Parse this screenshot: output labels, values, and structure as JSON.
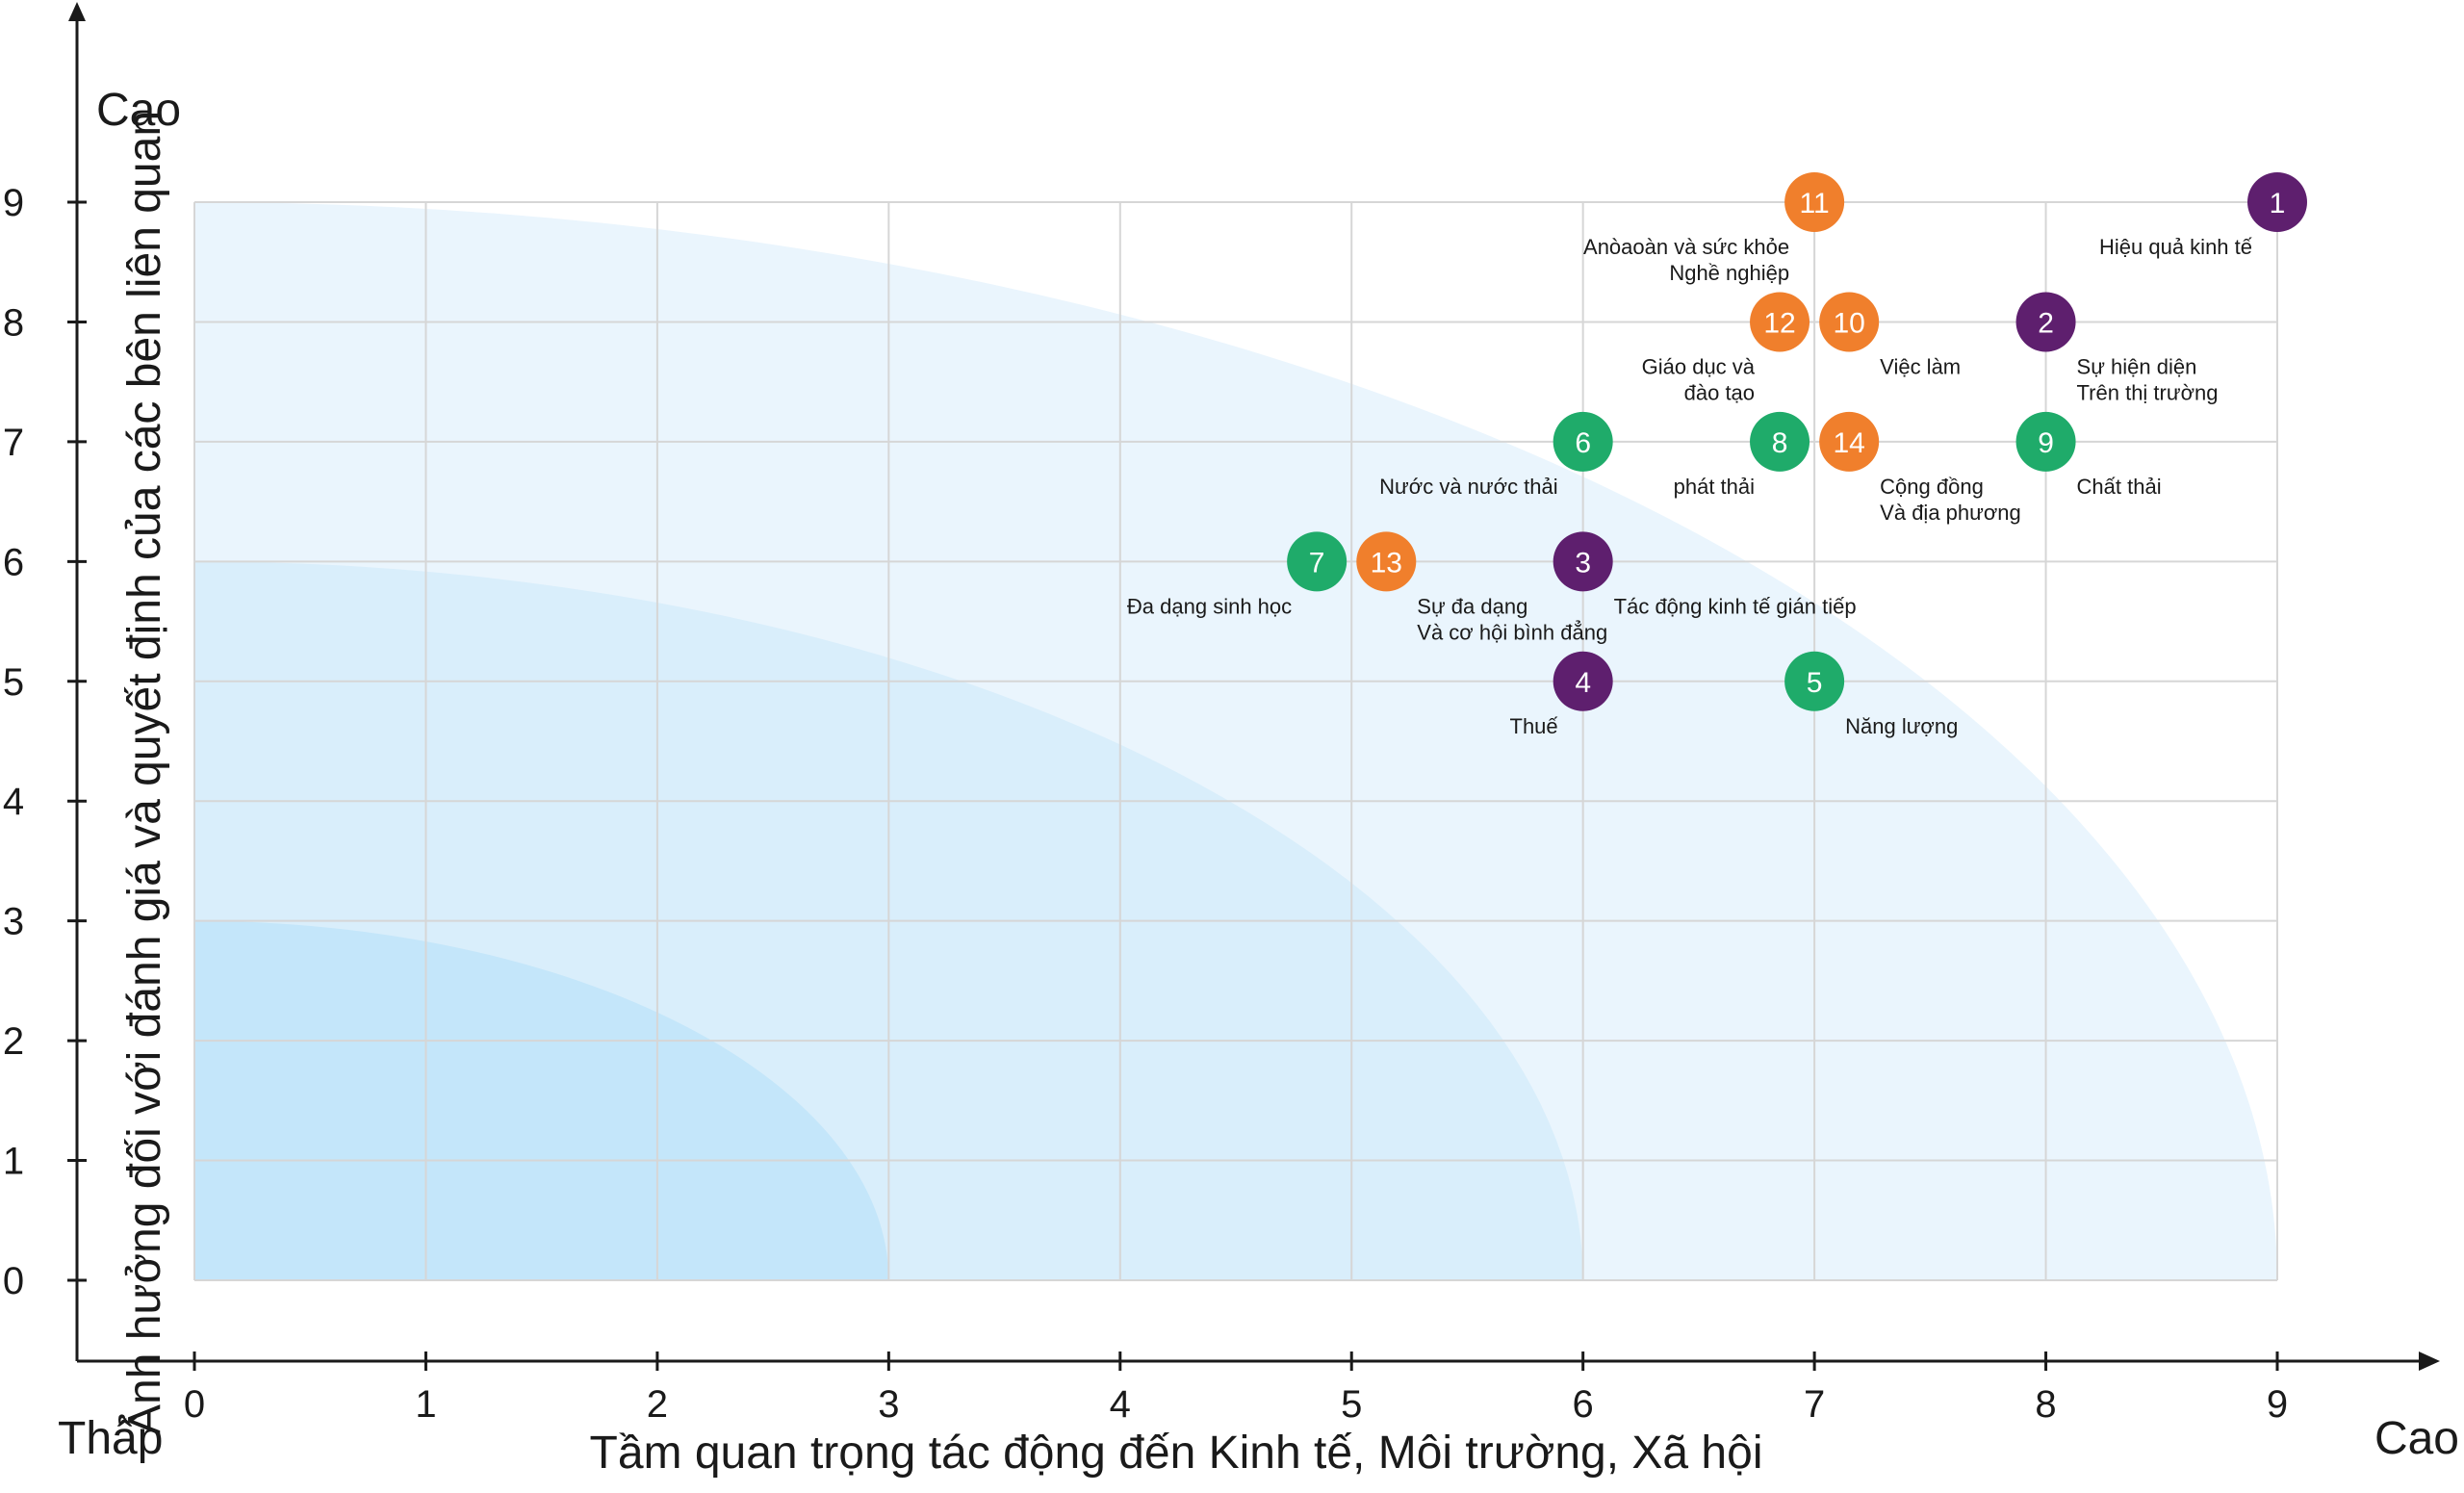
{
  "chart_data": {
    "type": "scatter",
    "xlabel": "Tầm quan trọng tác động đến Kinh tế, Môi trường, Xã hội",
    "ylabel": "Ảnh hưởng đối với đánh giá và quyết định của các bên liên quan",
    "x_low_label": "Thấp",
    "x_high_label": "Cao",
    "y_high_label": "Cao",
    "xlim": [
      0,
      9
    ],
    "ylim": [
      0,
      9
    ],
    "x_ticks": [
      "0",
      "1",
      "2",
      "3",
      "4",
      "5",
      "6",
      "7",
      "8",
      "9"
    ],
    "y_ticks": [
      "0",
      "1",
      "2",
      "3",
      "4",
      "5",
      "6",
      "7",
      "8",
      "9"
    ],
    "grid": true,
    "zones": [
      {
        "radius": 3,
        "color": "#c4e6fa"
      },
      {
        "radius": 6,
        "color": "#d9eefb"
      },
      {
        "radius": 9,
        "color": "#eaf5fd"
      }
    ],
    "category_colors": {
      "purple": "#5e1f6e",
      "orange": "#f07f2c",
      "green": "#1fab6a"
    },
    "points": [
      {
        "id": "1",
        "x": 9.0,
        "y": 9.0,
        "color": "purple",
        "label": [
          "Hiệu quả kinh tế"
        ],
        "label_side": "left"
      },
      {
        "id": "2",
        "x": 8.0,
        "y": 8.0,
        "color": "purple",
        "label": [
          "Sự hiện diện",
          "Trên thị trường"
        ],
        "label_side": "right"
      },
      {
        "id": "3",
        "x": 6.0,
        "y": 6.0,
        "color": "purple",
        "label": [
          "Tác động kinh tế gián tiếp"
        ],
        "label_side": "right"
      },
      {
        "id": "4",
        "x": 6.0,
        "y": 5.0,
        "color": "purple",
        "label": [
          "Thuế"
        ],
        "label_side": "left"
      },
      {
        "id": "5",
        "x": 7.0,
        "y": 5.0,
        "color": "green",
        "label": [
          "Năng lượng"
        ],
        "label_side": "right"
      },
      {
        "id": "6",
        "x": 6.0,
        "y": 7.0,
        "color": "green",
        "label": [
          "Nước và nước thải"
        ],
        "label_side": "left"
      },
      {
        "id": "7",
        "x": 4.85,
        "y": 6.0,
        "color": "green",
        "label": [
          "Đa dạng sinh học"
        ],
        "label_side": "left"
      },
      {
        "id": "8",
        "x": 6.85,
        "y": 7.0,
        "color": "green",
        "label": [
          "phát thải"
        ],
        "label_side": "left"
      },
      {
        "id": "9",
        "x": 8.0,
        "y": 7.0,
        "color": "green",
        "label": [
          "Chất thải"
        ],
        "label_side": "right"
      },
      {
        "id": "10",
        "x": 7.15,
        "y": 8.0,
        "color": "orange",
        "label": [
          "Việc làm"
        ],
        "label_side": "right"
      },
      {
        "id": "11",
        "x": 7.0,
        "y": 9.0,
        "color": "orange",
        "label": [
          "Anòaoàn và sức khỏe",
          "Nghề nghiệp"
        ],
        "label_side": "left"
      },
      {
        "id": "12",
        "x": 6.85,
        "y": 8.0,
        "color": "orange",
        "label": [
          "Giáo dục và",
          "đào tạo"
        ],
        "label_side": "left"
      },
      {
        "id": "13",
        "x": 5.15,
        "y": 6.0,
        "color": "orange",
        "label": [
          "Sự đa dạng",
          "Và cơ hội bình đẳng"
        ],
        "label_side": "right"
      },
      {
        "id": "14",
        "x": 7.15,
        "y": 7.0,
        "color": "orange",
        "label": [
          "Cộng đồng",
          "Và địa phương"
        ],
        "label_side": "right"
      }
    ]
  }
}
